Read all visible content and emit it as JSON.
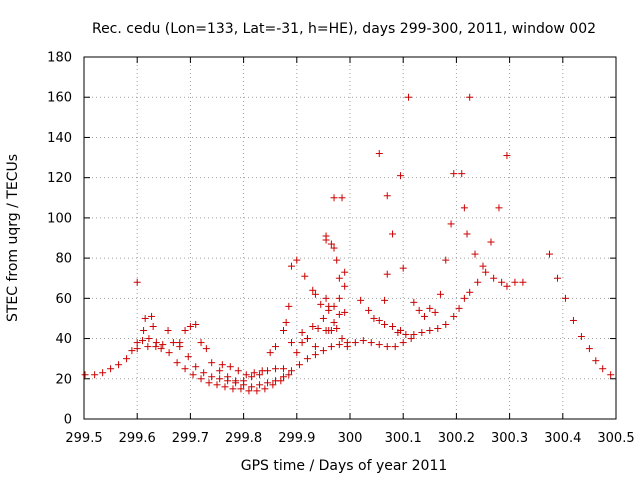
{
  "chart_data": {
    "type": "scatter",
    "title": "Rec. cedu (Lon=133, Lat=-31, h=HE), days 299-300, 2011, window 002",
    "xlabel": "GPS time / Days of year 2011",
    "ylabel": "STEC from uqrg / TECUs",
    "xlim": [
      299.5,
      300.5
    ],
    "ylim": [
      0,
      180
    ],
    "xticks": [
      299.5,
      299.6,
      299.7,
      299.8,
      299.9,
      300,
      300.1,
      300.2,
      300.3,
      300.4,
      300.5
    ],
    "xtick_labels": [
      "299.5",
      "299.6",
      "299.7",
      "299.8",
      "299.9",
      "300",
      "300.1",
      "300.2",
      "300.3",
      "300.4",
      "300.5"
    ],
    "yticks": [
      0,
      20,
      40,
      60,
      80,
      100,
      120,
      140,
      160,
      180
    ],
    "ytick_labels": [
      "0",
      "20",
      "40",
      "60",
      "80",
      "100",
      "120",
      "140",
      "160",
      "180"
    ],
    "marker": "+",
    "color": "#cc0000",
    "series": [
      {
        "name": "STEC",
        "points": [
          [
            299.502,
            22
          ],
          [
            299.52,
            22
          ],
          [
            299.535,
            23
          ],
          [
            299.55,
            25
          ],
          [
            299.565,
            27
          ],
          [
            299.58,
            30
          ],
          [
            299.59,
            34
          ],
          [
            299.6,
            35
          ],
          [
            299.61,
            39
          ],
          [
            299.62,
            36
          ],
          [
            299.635,
            36
          ],
          [
            299.645,
            35
          ],
          [
            299.66,
            33
          ],
          [
            299.675,
            28
          ],
          [
            299.69,
            25
          ],
          [
            299.705,
            22
          ],
          [
            299.72,
            20
          ],
          [
            299.735,
            18
          ],
          [
            299.75,
            17
          ],
          [
            299.765,
            16
          ],
          [
            299.78,
            15
          ],
          [
            299.795,
            15
          ],
          [
            299.81,
            14
          ],
          [
            299.825,
            14
          ],
          [
            299.84,
            15
          ],
          [
            299.855,
            17
          ],
          [
            299.87,
            19
          ],
          [
            299.885,
            22
          ],
          [
            299.6,
            68
          ],
          [
            299.6,
            38
          ],
          [
            299.612,
            44
          ],
          [
            299.622,
            40
          ],
          [
            299.627,
            51
          ],
          [
            299.636,
            38
          ],
          [
            299.648,
            37
          ],
          [
            299.658,
            44
          ],
          [
            299.668,
            38
          ],
          [
            299.68,
            36
          ],
          [
            299.69,
            44
          ],
          [
            299.7,
            46
          ],
          [
            299.71,
            47
          ],
          [
            299.72,
            38
          ],
          [
            299.73,
            35
          ],
          [
            299.74,
            28
          ],
          [
            299.755,
            24
          ],
          [
            299.77,
            21
          ],
          [
            299.785,
            19
          ],
          [
            299.8,
            17
          ],
          [
            299.815,
            16
          ],
          [
            299.83,
            17
          ],
          [
            299.845,
            18
          ],
          [
            299.86,
            19
          ],
          [
            299.875,
            21
          ],
          [
            299.89,
            24
          ],
          [
            299.905,
            27
          ],
          [
            299.92,
            30
          ],
          [
            299.935,
            32
          ],
          [
            299.95,
            34
          ],
          [
            299.965,
            36
          ],
          [
            299.98,
            37
          ],
          [
            299.995,
            38
          ],
          [
            300.01,
            38
          ],
          [
            300.025,
            39
          ],
          [
            300.04,
            38
          ],
          [
            300.055,
            37
          ],
          [
            300.07,
            36
          ],
          [
            300.085,
            36
          ],
          [
            300.1,
            38
          ],
          [
            300.115,
            40
          ],
          [
            299.615,
            50
          ],
          [
            299.63,
            46
          ],
          [
            299.68,
            38
          ],
          [
            299.696,
            31
          ],
          [
            299.71,
            26
          ],
          [
            299.725,
            23
          ],
          [
            299.74,
            21
          ],
          [
            299.755,
            20
          ],
          [
            299.77,
            19
          ],
          [
            299.785,
            18
          ],
          [
            299.8,
            19
          ],
          [
            299.815,
            21
          ],
          [
            299.83,
            22
          ],
          [
            299.845,
            24
          ],
          [
            299.86,
            25
          ],
          [
            299.875,
            25
          ],
          [
            299.76,
            27
          ],
          [
            299.775,
            26
          ],
          [
            299.79,
            24
          ],
          [
            299.805,
            22
          ],
          [
            299.82,
            23
          ],
          [
            299.835,
            24
          ],
          [
            299.85,
            33
          ],
          [
            299.86,
            36
          ],
          [
            299.875,
            44
          ],
          [
            299.88,
            48
          ],
          [
            299.885,
            56
          ],
          [
            299.89,
            76
          ],
          [
            299.9,
            79
          ],
          [
            299.91,
            43
          ],
          [
            299.92,
            40
          ],
          [
            299.93,
            46
          ],
          [
            299.94,
            45
          ],
          [
            299.955,
            44
          ],
          [
            299.965,
            44
          ],
          [
            299.975,
            45
          ],
          [
            299.985,
            40
          ],
          [
            299.995,
            36
          ],
          [
            299.89,
            38
          ],
          [
            299.9,
            33
          ],
          [
            299.91,
            38
          ],
          [
            299.92,
            40
          ],
          [
            299.935,
            36
          ],
          [
            299.95,
            50
          ],
          [
            299.96,
            54
          ],
          [
            299.97,
            56
          ],
          [
            299.98,
            52
          ],
          [
            299.99,
            53
          ],
          [
            299.915,
            71
          ],
          [
            299.93,
            64
          ],
          [
            299.935,
            62
          ],
          [
            299.945,
            57
          ],
          [
            299.955,
            60
          ],
          [
            299.96,
            56
          ],
          [
            299.955,
            89
          ],
          [
            299.965,
            87
          ],
          [
            299.97,
            85
          ],
          [
            299.975,
            79
          ],
          [
            299.98,
            70
          ],
          [
            299.99,
            73
          ],
          [
            299.99,
            66
          ],
          [
            299.98,
            60
          ],
          [
            299.97,
            48
          ],
          [
            299.96,
            44
          ],
          [
            299.97,
            110
          ],
          [
            299.985,
            110
          ],
          [
            299.955,
            91
          ],
          [
            300.02,
            59
          ],
          [
            300.035,
            54
          ],
          [
            300.045,
            50
          ],
          [
            300.055,
            49
          ],
          [
            300.065,
            47
          ],
          [
            300.08,
            46
          ],
          [
            300.095,
            44
          ],
          [
            300.105,
            42
          ],
          [
            300.12,
            42
          ],
          [
            300.135,
            43
          ],
          [
            300.15,
            44
          ],
          [
            300.165,
            45
          ],
          [
            300.18,
            47
          ],
          [
            300.195,
            51
          ],
          [
            300.205,
            55
          ],
          [
            300.215,
            60
          ],
          [
            300.225,
            63
          ],
          [
            300.055,
            132
          ],
          [
            300.07,
            111
          ],
          [
            300.08,
            92
          ],
          [
            300.095,
            121
          ],
          [
            300.1,
            75
          ],
          [
            300.11,
            160
          ],
          [
            300.065,
            59
          ],
          [
            300.07,
            72
          ],
          [
            300.09,
            43
          ],
          [
            300.12,
            58
          ],
          [
            300.13,
            54
          ],
          [
            300.14,
            51
          ],
          [
            300.15,
            55
          ],
          [
            300.16,
            53
          ],
          [
            300.17,
            62
          ],
          [
            300.18,
            79
          ],
          [
            300.19,
            97
          ],
          [
            300.195,
            122
          ],
          [
            300.21,
            122
          ],
          [
            300.215,
            105
          ],
          [
            300.22,
            92
          ],
          [
            300.225,
            160
          ],
          [
            300.235,
            82
          ],
          [
            300.24,
            68
          ],
          [
            300.25,
            76
          ],
          [
            300.255,
            73
          ],
          [
            300.265,
            88
          ],
          [
            300.28,
            105
          ],
          [
            300.295,
            131
          ],
          [
            300.27,
            70
          ],
          [
            300.285,
            68
          ],
          [
            300.295,
            66
          ],
          [
            300.31,
            68
          ],
          [
            300.325,
            68
          ],
          [
            300.375,
            82
          ],
          [
            300.39,
            70
          ],
          [
            300.405,
            60
          ],
          [
            300.42,
            49
          ],
          [
            300.435,
            41
          ],
          [
            300.45,
            35
          ],
          [
            300.462,
            29
          ],
          [
            300.475,
            25
          ],
          [
            300.49,
            22
          ]
        ]
      }
    ]
  }
}
